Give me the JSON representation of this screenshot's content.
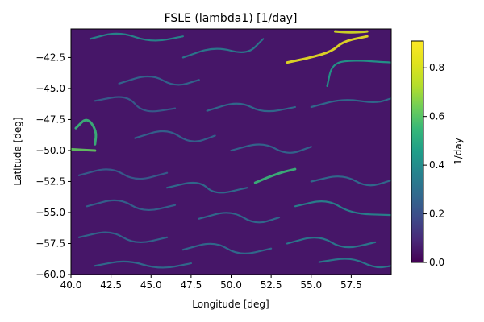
{
  "chart_data": {
    "type": "heatmap",
    "title": "FSLE (lambda1) [1/day]",
    "xlabel": "Longitude [deg]",
    "ylabel": "Latitude [deg]",
    "xlim": [
      40.0,
      60.0
    ],
    "ylim": [
      -60.0,
      -40.2
    ],
    "x_ticks": [
      40.0,
      42.5,
      45.0,
      47.5,
      50.0,
      52.5,
      55.0,
      57.5
    ],
    "x_tick_labels": [
      "40.0",
      "42.5",
      "45.0",
      "47.5",
      "50.0",
      "52.5",
      "55.0",
      "57.5"
    ],
    "y_ticks": [
      -42.5,
      -45.0,
      -47.5,
      -50.0,
      -52.5,
      -55.0,
      -57.5,
      -60.0
    ],
    "y_tick_labels": [
      "−42.5",
      "−45.0",
      "−47.5",
      "−50.0",
      "−52.5",
      "−55.0",
      "−57.5",
      "−60.0"
    ],
    "colormap": "viridis",
    "colorbar": {
      "label": "1/day",
      "range": [
        0.0,
        0.91
      ],
      "ticks": [
        0.0,
        0.2,
        0.4,
        0.6,
        0.8
      ],
      "tick_labels": [
        "0.0",
        "0.2",
        "0.4",
        "0.6",
        "0.8"
      ]
    },
    "background_value": 0.05,
    "filaments": [
      {
        "points": [
          [
            53.5,
            -42.9
          ],
          [
            55.0,
            -42.5
          ],
          [
            56.3,
            -42.0
          ],
          [
            57.0,
            -41.2
          ],
          [
            58.5,
            -40.8
          ]
        ],
        "value": 0.85
      },
      {
        "points": [
          [
            56.5,
            -40.4
          ],
          [
            57.5,
            -40.5
          ],
          [
            58.5,
            -40.4
          ]
        ],
        "value": 0.8
      },
      {
        "points": [
          [
            40.0,
            -49.9
          ],
          [
            41.5,
            -50.0
          ]
        ],
        "value": 0.62
      },
      {
        "points": [
          [
            40.3,
            -48.2
          ],
          [
            41.0,
            -47.3
          ],
          [
            41.6,
            -48.4
          ],
          [
            41.5,
            -49.5
          ]
        ],
        "value": 0.55
      },
      {
        "points": [
          [
            41.2,
            -41.0
          ],
          [
            43.0,
            -40.4
          ],
          [
            45.0,
            -41.3
          ],
          [
            47.0,
            -40.8
          ]
        ],
        "value": 0.4
      },
      {
        "points": [
          [
            47.0,
            -42.5
          ],
          [
            49.0,
            -41.6
          ],
          [
            51.0,
            -42.3
          ],
          [
            52.0,
            -41.0
          ]
        ],
        "value": 0.35
      },
      {
        "points": [
          [
            56.0,
            -44.8
          ],
          [
            56.3,
            -43.0
          ],
          [
            57.5,
            -42.7
          ],
          [
            60.0,
            -42.9
          ]
        ],
        "value": 0.45
      },
      {
        "points": [
          [
            55.0,
            -46.5
          ],
          [
            57.0,
            -45.8
          ],
          [
            59.0,
            -46.2
          ],
          [
            60.0,
            -45.8
          ]
        ],
        "value": 0.3
      },
      {
        "points": [
          [
            43.0,
            -44.6
          ],
          [
            45.0,
            -43.8
          ],
          [
            46.5,
            -44.9
          ],
          [
            48.0,
            -44.3
          ]
        ],
        "value": 0.28
      },
      {
        "points": [
          [
            41.5,
            -46.0
          ],
          [
            43.5,
            -45.5
          ],
          [
            44.5,
            -47.0
          ],
          [
            46.5,
            -46.6
          ]
        ],
        "value": 0.25
      },
      {
        "points": [
          [
            48.5,
            -46.8
          ],
          [
            50.5,
            -46.0
          ],
          [
            52.0,
            -47.0
          ],
          [
            54.0,
            -46.5
          ]
        ],
        "value": 0.3
      },
      {
        "points": [
          [
            44.0,
            -49.0
          ],
          [
            46.0,
            -48.2
          ],
          [
            47.5,
            -49.5
          ],
          [
            49.0,
            -48.8
          ]
        ],
        "value": 0.27
      },
      {
        "points": [
          [
            50.0,
            -50.0
          ],
          [
            52.0,
            -49.3
          ],
          [
            53.5,
            -50.4
          ],
          [
            55.0,
            -49.7
          ]
        ],
        "value": 0.28
      },
      {
        "points": [
          [
            51.5,
            -52.6
          ],
          [
            53.0,
            -51.8
          ],
          [
            54.0,
            -51.5
          ]
        ],
        "value": 0.55
      },
      {
        "points": [
          [
            40.5,
            -52.0
          ],
          [
            42.5,
            -51.3
          ],
          [
            44.0,
            -52.5
          ],
          [
            46.0,
            -51.8
          ]
        ],
        "value": 0.25
      },
      {
        "points": [
          [
            46.0,
            -53.0
          ],
          [
            48.0,
            -52.4
          ],
          [
            49.0,
            -53.6
          ],
          [
            51.0,
            -53.0
          ]
        ],
        "value": 0.3
      },
      {
        "points": [
          [
            55.0,
            -52.5
          ],
          [
            57.0,
            -51.9
          ],
          [
            58.5,
            -53.0
          ],
          [
            60.0,
            -52.4
          ]
        ],
        "value": 0.3
      },
      {
        "points": [
          [
            41.0,
            -54.5
          ],
          [
            43.0,
            -53.8
          ],
          [
            44.5,
            -55.0
          ],
          [
            46.5,
            -54.4
          ]
        ],
        "value": 0.27
      },
      {
        "points": [
          [
            48.0,
            -55.5
          ],
          [
            50.0,
            -54.8
          ],
          [
            51.5,
            -56.0
          ],
          [
            53.0,
            -55.4
          ]
        ],
        "value": 0.3
      },
      {
        "points": [
          [
            54.0,
            -54.5
          ],
          [
            56.0,
            -53.9
          ],
          [
            57.5,
            -55.1
          ],
          [
            60.0,
            -55.2
          ]
        ],
        "value": 0.38
      },
      {
        "points": [
          [
            40.5,
            -57.0
          ],
          [
            42.5,
            -56.4
          ],
          [
            44.0,
            -57.6
          ],
          [
            46.0,
            -57.0
          ]
        ],
        "value": 0.28
      },
      {
        "points": [
          [
            47.0,
            -58.0
          ],
          [
            49.0,
            -57.3
          ],
          [
            50.5,
            -58.5
          ],
          [
            52.5,
            -57.9
          ]
        ],
        "value": 0.3
      },
      {
        "points": [
          [
            53.5,
            -57.5
          ],
          [
            55.5,
            -56.8
          ],
          [
            57.0,
            -58.0
          ],
          [
            59.0,
            -57.4
          ]
        ],
        "value": 0.35
      },
      {
        "points": [
          [
            41.5,
            -59.3
          ],
          [
            43.5,
            -58.8
          ],
          [
            45.5,
            -59.6
          ],
          [
            47.5,
            -59.1
          ]
        ],
        "value": 0.3
      },
      {
        "points": [
          [
            55.5,
            -59.0
          ],
          [
            57.5,
            -58.6
          ],
          [
            59.0,
            -59.5
          ],
          [
            60.0,
            -59.3
          ]
        ],
        "value": 0.35
      }
    ]
  }
}
